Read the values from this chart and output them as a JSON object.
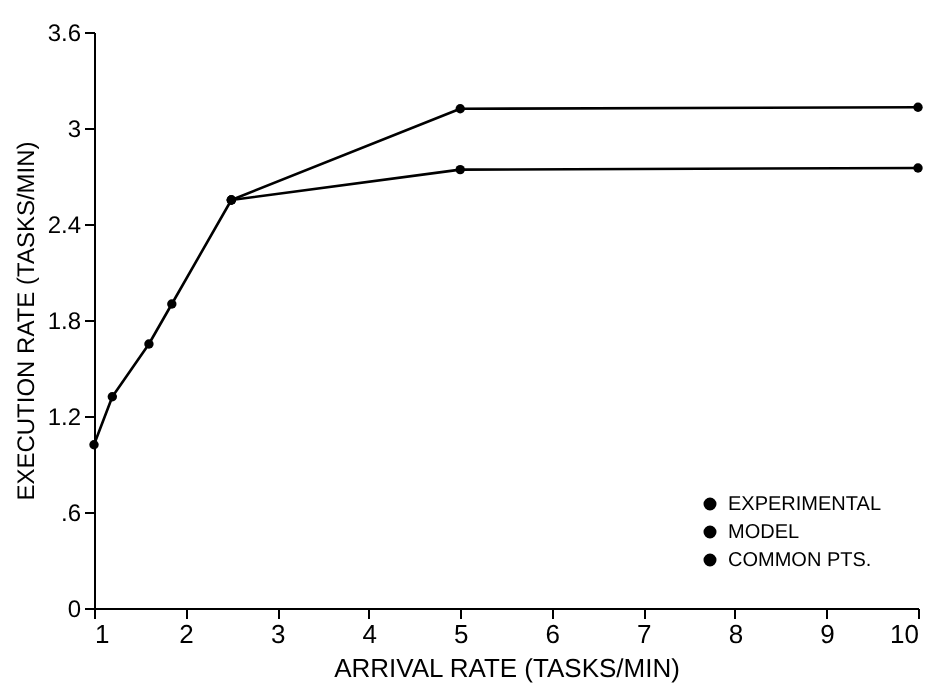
{
  "chart_data": {
    "type": "line",
    "xlabel": "ARRIVAL RATE  (TASKS/MIN)",
    "ylabel": "EXECUTION RATE  (TASKS/MIN)",
    "xlim": [
      1,
      10
    ],
    "xticks": [
      1,
      2,
      3,
      4,
      5,
      6,
      7,
      8,
      9,
      10
    ],
    "ylim": [
      0,
      3.6
    ],
    "yticks": [
      0,
      {
        "value": 0.6,
        "label": ".6"
      },
      1.2,
      1.8,
      2.4,
      3,
      3.6
    ],
    "grid": false,
    "legend": "bottom right",
    "marker": "circle",
    "line_style": "solid",
    "series": [
      {
        "name": "EXPERIMENTAL",
        "color": "#000000",
        "x": [
          2.5,
          5,
          10
        ],
        "values": [
          2.55,
          3.12,
          3.13
        ]
      },
      {
        "name": "MODEL",
        "color": "#000000",
        "x": [
          2.5,
          5,
          10
        ],
        "values": [
          2.55,
          2.74,
          2.75
        ]
      },
      {
        "name": "COMMON PTS.",
        "color": "#000000",
        "x": [
          1,
          1.2,
          1.6,
          1.85,
          2.5
        ],
        "values": [
          1.02,
          1.32,
          1.65,
          1.9,
          2.55
        ]
      }
    ]
  }
}
